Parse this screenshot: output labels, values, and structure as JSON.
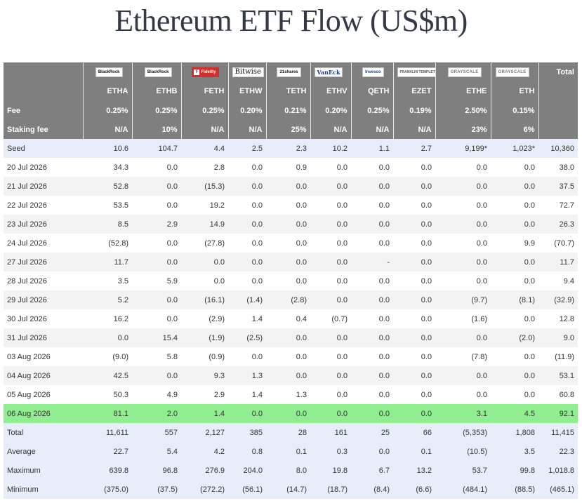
{
  "page": {
    "title": "Ethereum ETF Flow (US$m)"
  },
  "header": {
    "total_label": "Total",
    "fee_label": "Fee",
    "staking_label": "Staking fee",
    "funds": [
      {
        "issuer": "BlackRock",
        "ticker": "ETHA",
        "fee": "0.25%",
        "staking": "N/A"
      },
      {
        "issuer": "BlackRock",
        "ticker": "ETHB",
        "fee": "0.25%",
        "staking": "10%"
      },
      {
        "issuer": "Fidelity",
        "ticker": "FETH",
        "fee": "0.25%",
        "staking": "N/A"
      },
      {
        "issuer": "Bitwise",
        "ticker": "ETHW",
        "fee": "0.20%",
        "staking": "N/A"
      },
      {
        "issuer": "21shares",
        "ticker": "TETH",
        "fee": "0.21%",
        "staking": "25%"
      },
      {
        "issuer": "VanEck",
        "ticker": "ETHV",
        "fee": "0.20%",
        "staking": "N/A"
      },
      {
        "issuer": "Invesco",
        "ticker": "QETH",
        "fee": "0.25%",
        "staking": "N/A"
      },
      {
        "issuer": "FRANKLIN TEMPLETON",
        "ticker": "EZET",
        "fee": "0.19%",
        "staking": "N/A"
      },
      {
        "issuer": "GRAYSCALE",
        "ticker": "ETHE",
        "fee": "2.50%",
        "staking": "23%"
      },
      {
        "issuer": "GRAYSCALE",
        "ticker": "ETH",
        "fee": "0.15%",
        "staking": "6%"
      }
    ]
  },
  "rows": [
    {
      "label": "Seed",
      "cells": [
        "10.6",
        "104.7",
        "4.4",
        "2.5",
        "2.3",
        "10.2",
        "1.1",
        "2.7",
        "9,199*",
        "1,023*"
      ],
      "total": "10,360"
    },
    {
      "label": "20 Jul 2026",
      "cells": [
        "34.3",
        "0.0",
        "2.8",
        "0.0",
        "0.9",
        "0.0",
        "0.0",
        "0.0",
        "0.0",
        "0.0"
      ],
      "total": "38.0"
    },
    {
      "label": "21 Jul 2026",
      "cells": [
        "52.8",
        "0.0",
        "(15.3)",
        "0.0",
        "0.0",
        "0.0",
        "0.0",
        "0.0",
        "0.0",
        "0.0"
      ],
      "total": "37.5"
    },
    {
      "label": "22 Jul 2026",
      "cells": [
        "53.5",
        "0.0",
        "19.2",
        "0.0",
        "0.0",
        "0.0",
        "0.0",
        "0.0",
        "0.0",
        "0.0"
      ],
      "total": "72.7"
    },
    {
      "label": "23 Jul 2026",
      "cells": [
        "8.5",
        "2.9",
        "14.9",
        "0.0",
        "0.0",
        "0.0",
        "0.0",
        "0.0",
        "0.0",
        "0.0"
      ],
      "total": "26.3"
    },
    {
      "label": "24 Jul 2026",
      "cells": [
        "(52.8)",
        "0.0",
        "(27.8)",
        "0.0",
        "0.0",
        "0.0",
        "0.0",
        "0.0",
        "0.0",
        "9.9"
      ],
      "total": "(70.7)"
    },
    {
      "label": "27 Jul 2026",
      "cells": [
        "11.7",
        "0.0",
        "0.0",
        "0.0",
        "0.0",
        "0.0",
        "-",
        "0.0",
        "0.0",
        "0.0"
      ],
      "total": "11.7"
    },
    {
      "label": "28 Jul 2026",
      "cells": [
        "3.5",
        "5.9",
        "0.0",
        "0.0",
        "0.0",
        "0.0",
        "0.0",
        "0.0",
        "0.0",
        "0.0"
      ],
      "total": "9.4"
    },
    {
      "label": "29 Jul 2026",
      "cells": [
        "5.2",
        "0.0",
        "(16.1)",
        "(1.4)",
        "(2.8)",
        "0.0",
        "0.0",
        "0.0",
        "(9.7)",
        "(8.1)"
      ],
      "total": "(32.9)"
    },
    {
      "label": "30 Jul 2026",
      "cells": [
        "16.2",
        "0.0",
        "(2.9)",
        "1.4",
        "0.4",
        "(0.7)",
        "0.0",
        "0.0",
        "(1.6)",
        "0.0"
      ],
      "total": "12.8"
    },
    {
      "label": "31 Jul 2026",
      "cells": [
        "0.0",
        "15.4",
        "(1.9)",
        "(2.5)",
        "0.0",
        "0.0",
        "0.0",
        "0.0",
        "0.0",
        "(2.0)"
      ],
      "total": "9.0"
    },
    {
      "label": "03 Aug 2026",
      "cells": [
        "(9.0)",
        "5.8",
        "(0.9)",
        "0.0",
        "0.0",
        "0.0",
        "0.0",
        "0.0",
        "(7.8)",
        "0.0"
      ],
      "total": "(11.9)"
    },
    {
      "label": "04 Aug 2026",
      "cells": [
        "42.5",
        "0.0",
        "9.3",
        "1.3",
        "0.0",
        "0.0",
        "0.0",
        "0.0",
        "0.0",
        "0.0"
      ],
      "total": "53.1"
    },
    {
      "label": "05 Aug 2026",
      "cells": [
        "50.3",
        "4.9",
        "2.9",
        "1.4",
        "1.3",
        "0.0",
        "0.0",
        "0.0",
        "0.0",
        "0.0"
      ],
      "total": "60.8"
    },
    {
      "label": "06 Aug 2026",
      "cells": [
        "81.1",
        "2.0",
        "1.4",
        "0.0",
        "0.0",
        "0.0",
        "0.0",
        "0.0",
        "3.1",
        "4.5"
      ],
      "total": "92.1"
    },
    {
      "label": "Total",
      "cells": [
        "11,611",
        "557",
        "2,127",
        "385",
        "28",
        "161",
        "25",
        "66",
        "(5,353)",
        "1,808"
      ],
      "total": "11,415"
    },
    {
      "label": "Average",
      "cells": [
        "22.7",
        "5.4",
        "4.2",
        "0.8",
        "0.1",
        "0.3",
        "0.0",
        "0.1",
        "(10.5)",
        "3.5"
      ],
      "total": "22.3"
    },
    {
      "label": "Maximum",
      "cells": [
        "639.8",
        "96.8",
        "276.9",
        "204.0",
        "8.0",
        "19.8",
        "6.7",
        "13.2",
        "53.7",
        "99.8"
      ],
      "total": "1,018.8"
    },
    {
      "label": "Minimum",
      "cells": [
        "(375.0)",
        "(37.5)",
        "(272.2)",
        "(56.1)",
        "(14.7)",
        "(18.7)",
        "(8.4)",
        "(6.6)",
        "(484.1)",
        "(88.5)"
      ],
      "total": "(465.1)"
    }
  ],
  "colors": {
    "header_bg": "#7f7f7f",
    "seed_and_stats_bg": "#e8eef9",
    "highlight_row_bg": "#90ee90",
    "negative_text": "#cc0000",
    "zero_text": "#c8c8c8"
  }
}
